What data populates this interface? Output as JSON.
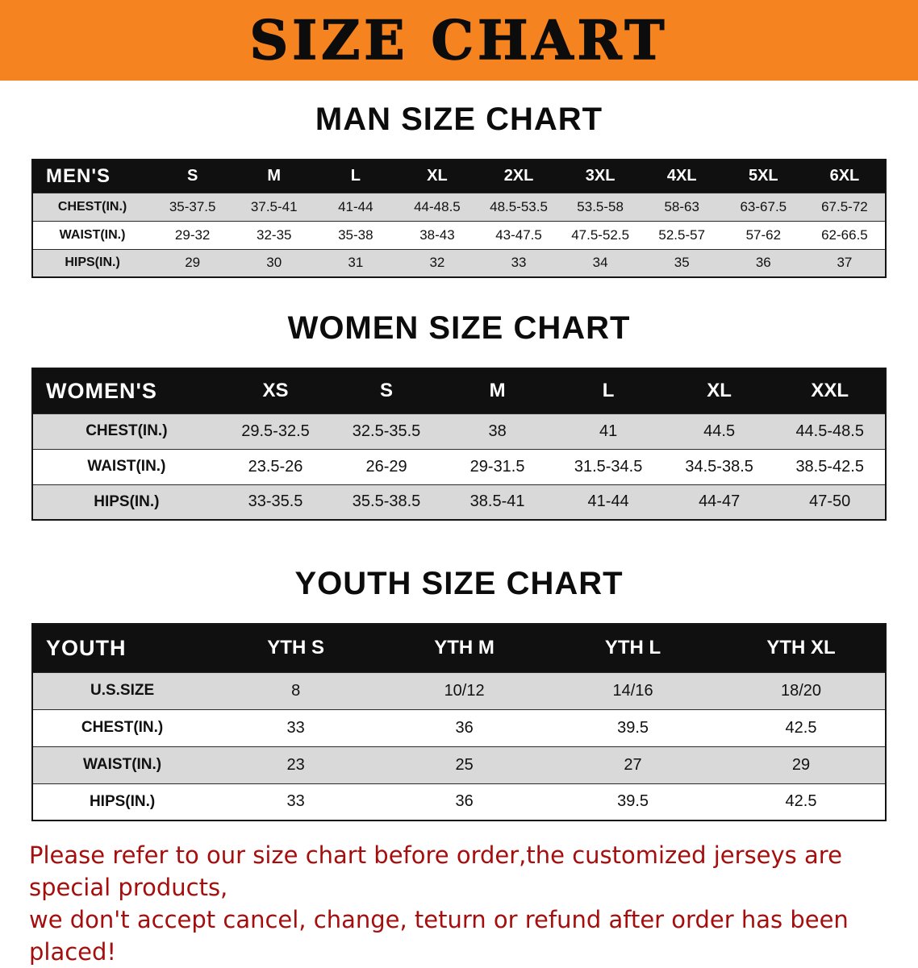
{
  "banner": {
    "title": "SIZE CHART"
  },
  "sections": [
    {
      "id": "men",
      "heading": "MAN SIZE CHART",
      "table": {
        "corner_label": "MEN'S",
        "columns": [
          "S",
          "M",
          "L",
          "XL",
          "2XL",
          "3XL",
          "4XL",
          "5XL",
          "6XL"
        ],
        "rows": [
          {
            "label": "CHEST(IN.)",
            "values": [
              "35-37.5",
              "37.5-41",
              "41-44",
              "44-48.5",
              "48.5-53.5",
              "53.5-58",
              "58-63",
              "63-67.5",
              "67.5-72"
            ]
          },
          {
            "label": "WAIST(IN.)",
            "values": [
              "29-32",
              "32-35",
              "35-38",
              "38-43",
              "43-47.5",
              "47.5-52.5",
              "52.5-57",
              "57-62",
              "62-66.5"
            ]
          },
          {
            "label": "HIPS(IN.)",
            "values": [
              "29",
              "30",
              "31",
              "32",
              "33",
              "34",
              "35",
              "36",
              "37"
            ]
          }
        ]
      }
    },
    {
      "id": "women",
      "heading": "WOMEN SIZE CHART",
      "table": {
        "corner_label": "WOMEN'S",
        "columns": [
          "XS",
          "S",
          "M",
          "L",
          "XL",
          "XXL"
        ],
        "rows": [
          {
            "label": "CHEST(IN.)",
            "values": [
              "29.5-32.5",
              "32.5-35.5",
              "38",
              "41",
              "44.5",
              "44.5-48.5"
            ]
          },
          {
            "label": "WAIST(IN.)",
            "values": [
              "23.5-26",
              "26-29",
              "29-31.5",
              "31.5-34.5",
              "34.5-38.5",
              "38.5-42.5"
            ]
          },
          {
            "label": "HIPS(IN.)",
            "values": [
              "33-35.5",
              "35.5-38.5",
              "38.5-41",
              "41-44",
              "44-47",
              "47-50"
            ]
          }
        ]
      }
    },
    {
      "id": "youth",
      "heading": "YOUTH SIZE CHART",
      "table": {
        "corner_label": "YOUTH",
        "columns": [
          "YTH S",
          "YTH M",
          "YTH L",
          "YTH XL"
        ],
        "rows": [
          {
            "label": "U.S.SIZE",
            "values": [
              "8",
              "10/12",
              "14/16",
              "18/20"
            ]
          },
          {
            "label": "CHEST(IN.)",
            "values": [
              "33",
              "36",
              "39.5",
              "42.5"
            ]
          },
          {
            "label": "WAIST(IN.)",
            "values": [
              "23",
              "25",
              "27",
              "29"
            ]
          },
          {
            "label": "HIPS(IN.)",
            "values": [
              "33",
              "36",
              "39.5",
              "42.5"
            ]
          }
        ]
      }
    }
  ],
  "disclaimer": {
    "line1": "Please refer to our size chart before order,the customized jerseys are special products,",
    "line2": "we don't accept cancel, change, teturn or refund after order has been placed!"
  },
  "colors": {
    "banner_bg": "#F5831F",
    "header_bg": "#101010",
    "header_text": "#FFFFFF",
    "stripe_gray": "#D9D9D9",
    "disclaimer_red": "#A60E0E"
  }
}
